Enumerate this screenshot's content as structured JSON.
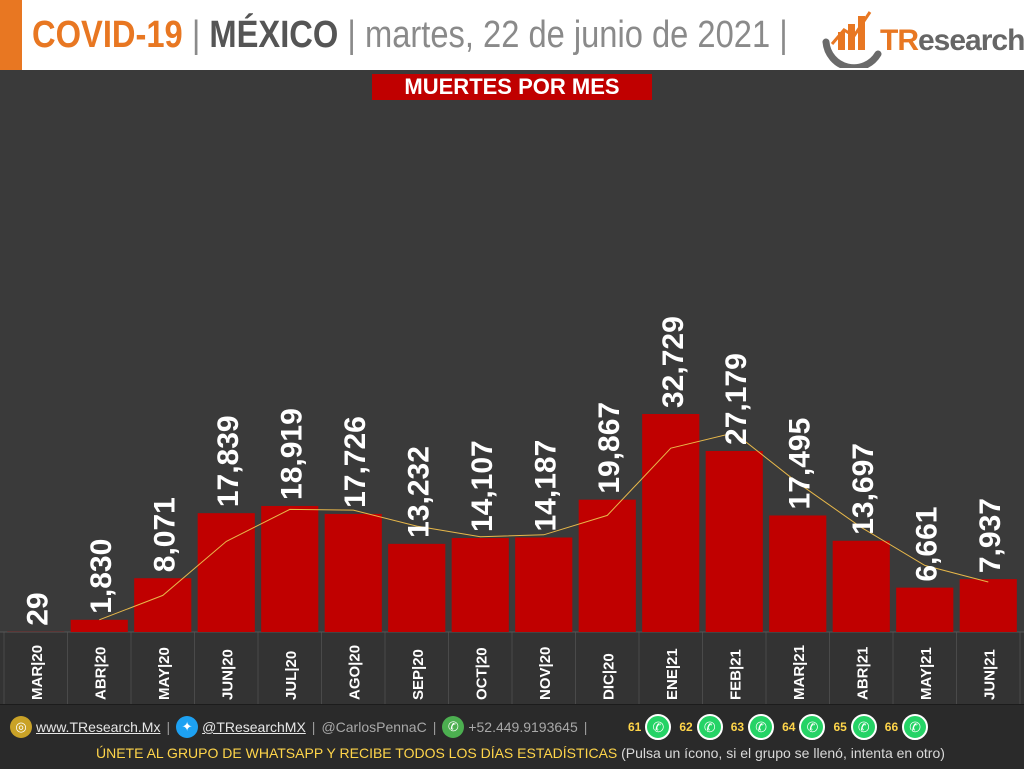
{
  "header": {
    "covid": "COVID-19",
    "separator": "|",
    "country": "MÉXICO",
    "date": "martes, 22 de junio de 2021",
    "trailing_separator": "|",
    "logo_t": "TR",
    "logo_rest": "esearch",
    "accent_color": "#e87722"
  },
  "chart_title": "MUERTES POR MES",
  "chart_data": {
    "type": "bar",
    "title": "MUERTES POR MES",
    "categories": [
      "MAR|20",
      "ABR|20",
      "MAY|20",
      "JUN|20",
      "JUL|20",
      "AGO|20",
      "SEP|20",
      "OCT|20",
      "NOV|20",
      "DIC|20",
      "ENE|21",
      "FEB|21",
      "MAR|21",
      "ABR|21",
      "MAY|21",
      "JUN|21"
    ],
    "values": [
      29,
      1830,
      8071,
      17839,
      18919,
      17726,
      13232,
      14107,
      14187,
      19867,
      32729,
      27179,
      17495,
      13697,
      6661,
      7937
    ],
    "value_labels": [
      "29",
      "1,830",
      "8,071",
      "17,839",
      "18,919",
      "17,726",
      "13,232",
      "14,107",
      "14,187",
      "19,867",
      "32,729",
      "27,179",
      "17,495",
      "13,697",
      "6,661",
      "7,937"
    ],
    "trend_line": [
      29,
      1830,
      5500,
      13600,
      18400,
      18300,
      15900,
      14300,
      14600,
      17500,
      27600,
      29900,
      22400,
      15700,
      10000,
      7500
    ],
    "ylim": [
      0,
      32729
    ],
    "bar_color": "#c00000",
    "line_color": "#e8b84a",
    "background": "#3a3a3a"
  },
  "footer": {
    "website": "www.TResearch.Mx",
    "twitter": "@TResearchMX",
    "handle": "@CarlosPennaC",
    "phone": "+52.449.9193645",
    "whatsapp_groups": [
      "61",
      "62",
      "63",
      "64",
      "65",
      "66"
    ],
    "cta": "ÚNETE AL GRUPO DE WHATSAPP Y RECIBE TODOS LOS DÍAS ESTADÍSTICAS",
    "note": "(Pulsa un ícono, si el grupo se llenó, intenta en otro)",
    "web_icon": "globe-icon",
    "twitter_icon": "twitter-icon",
    "phone_icon": "phone-icon",
    "whatsapp_icon": "whatsapp-icon"
  }
}
